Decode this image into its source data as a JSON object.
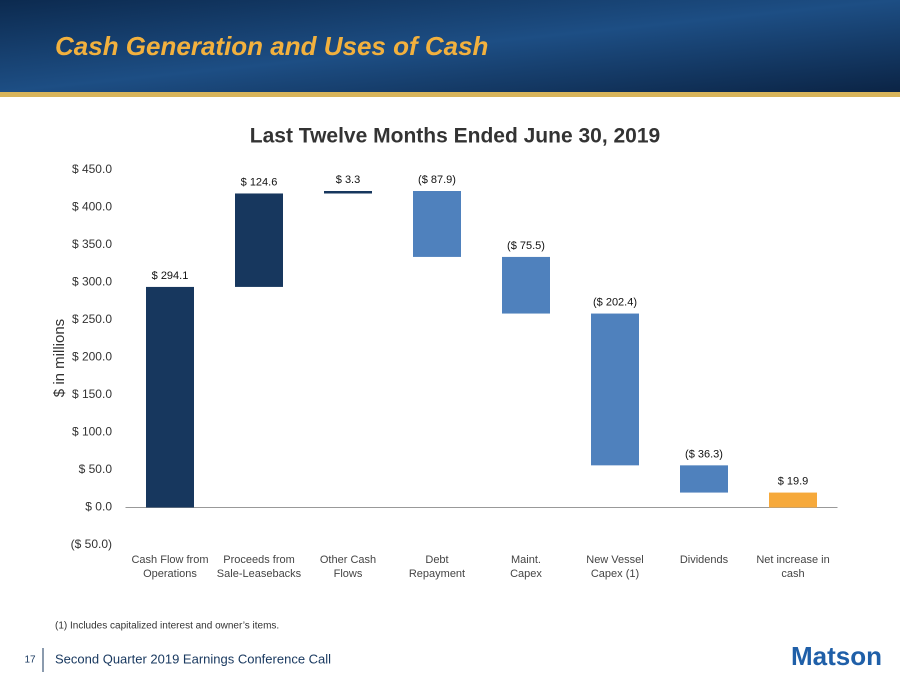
{
  "header": {
    "title": "Cash Generation and Uses of Cash"
  },
  "chart_data": {
    "type": "waterfall",
    "title": "Last Twelve Months Ended June 30, 2019",
    "ylabel": "$ in millions",
    "categories": [
      "Cash Flow from\nOperations",
      "Proceeds from\nSale-Leasebacks",
      "Other Cash\nFlows",
      "Debt\nRepayment",
      "Maint.\nCapex",
      "New Vessel\nCapex (1)",
      "Dividends",
      "Net increase in\ncash"
    ],
    "values": [
      294.1,
      124.6,
      3.3,
      -87.9,
      -75.5,
      -202.4,
      -36.3,
      19.9
    ],
    "value_labels": [
      "$ 294.1",
      "$ 124.6",
      "$ 3.3",
      "($ 87.9)",
      "($ 75.5)",
      "($ 202.4)",
      "($ 36.3)",
      "$ 19.9"
    ],
    "measure": [
      "absolute",
      "relative",
      "relative",
      "relative",
      "relative",
      "relative",
      "relative",
      "total"
    ],
    "colors": [
      "#17375e",
      "#17375e",
      "#17375e",
      "#4f81bd",
      "#4f81bd",
      "#4f81bd",
      "#4f81bd",
      "#f6a93b"
    ],
    "ylim": [
      -50,
      450
    ],
    "yticks": [
      {
        "value": -50,
        "label": "($ 50.0)"
      },
      {
        "value": 0,
        "label": "$ 0.0"
      },
      {
        "value": 50,
        "label": "$ 50.0"
      },
      {
        "value": 100,
        "label": "$ 100.0"
      },
      {
        "value": 150,
        "label": "$ 150.0"
      },
      {
        "value": 200,
        "label": "$ 200.0"
      },
      {
        "value": 250,
        "label": "$ 250.0"
      },
      {
        "value": 300,
        "label": "$ 300.0"
      },
      {
        "value": 350,
        "label": "$ 350.0"
      },
      {
        "value": 400,
        "label": "$ 400.0"
      },
      {
        "value": 450,
        "label": "$ 450.0"
      }
    ],
    "grid": false
  },
  "footnote": "(1) Includes capitalized interest and owner’s items.",
  "footer": {
    "page": "17",
    "text": "Second Quarter 2019 Earnings Conference Call",
    "logo": "Matson"
  }
}
